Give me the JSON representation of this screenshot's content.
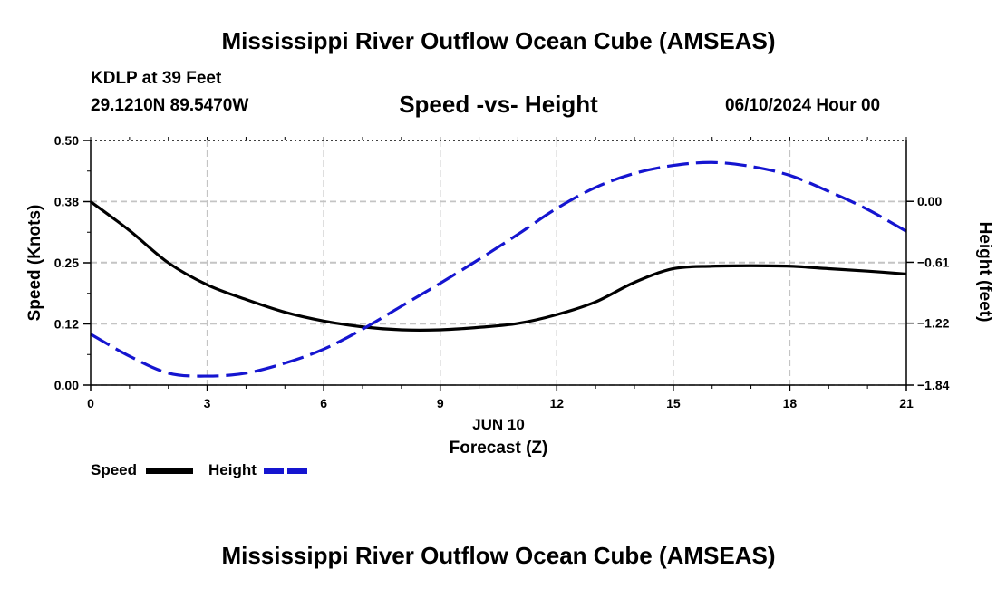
{
  "header": {
    "title": "Mississippi River Outflow Ocean Cube (AMSEAS)",
    "station": "KDLP at 39 Feet",
    "coordinates": "29.1210N  89.5470W",
    "subtitle": "Speed -vs- Height",
    "datetime": "06/10/2024 Hour 00"
  },
  "footer": {
    "title": "Mississippi River Outflow Ocean Cube (AMSEAS)"
  },
  "legend": {
    "speed_label": "Speed",
    "height_label": "Height",
    "speed_color": "#000000",
    "height_color": "#1515d0"
  },
  "chart_data": {
    "type": "line",
    "title": "Speed -vs- Height",
    "xlabel": "Forecast (Z)",
    "xlabel_date": "JUN 10",
    "ylabel": "Speed (Knots)",
    "y2label": "Height (feet)",
    "xlim": [
      0,
      21
    ],
    "ylim": [
      0,
      0.5
    ],
    "y2lim": [
      -1.84,
      0.61
    ],
    "xticks": [
      0,
      3,
      6,
      9,
      12,
      15,
      18,
      21
    ],
    "xtick_labels": [
      "0",
      "3",
      "6",
      "9",
      "12",
      "15",
      "18",
      "21"
    ],
    "yticks": [
      0.0,
      0.125,
      0.25,
      0.375,
      0.5
    ],
    "ytick_labels": [
      "0.00",
      "0.12",
      "0.25",
      "0.38",
      "0.50"
    ],
    "y2ticks": [
      -1.84,
      -1.22,
      -0.61,
      0.0
    ],
    "y2tick_labels": [
      "−1.84",
      "−1.22",
      "−0.61",
      "0.00"
    ],
    "grid": true,
    "series": [
      {
        "name": "Speed",
        "axis": "left",
        "style": "solid",
        "color": "#000000",
        "x": [
          0,
          1,
          2,
          3,
          4,
          5,
          6,
          7,
          8,
          9,
          10,
          11,
          12,
          13,
          14,
          15,
          16,
          17,
          18,
          19,
          20,
          21
        ],
        "values": [
          0.375,
          0.316,
          0.25,
          0.205,
          0.175,
          0.149,
          0.131,
          0.119,
          0.113,
          0.113,
          0.118,
          0.126,
          0.144,
          0.17,
          0.21,
          0.238,
          0.243,
          0.244,
          0.243,
          0.238,
          0.233,
          0.227
        ]
      },
      {
        "name": "Height",
        "axis": "right",
        "style": "dashed",
        "color": "#1515d0",
        "x": [
          0,
          1,
          2,
          3,
          4,
          5,
          6,
          7,
          8,
          9,
          10,
          11,
          12,
          13,
          14,
          15,
          16,
          17,
          18,
          19,
          20,
          21
        ],
        "values": [
          -1.33,
          -1.55,
          -1.72,
          -1.75,
          -1.72,
          -1.62,
          -1.48,
          -1.28,
          -1.05,
          -0.82,
          -0.58,
          -0.33,
          -0.07,
          0.14,
          0.28,
          0.36,
          0.39,
          0.35,
          0.26,
          0.1,
          -0.08,
          -0.3
        ]
      }
    ]
  }
}
